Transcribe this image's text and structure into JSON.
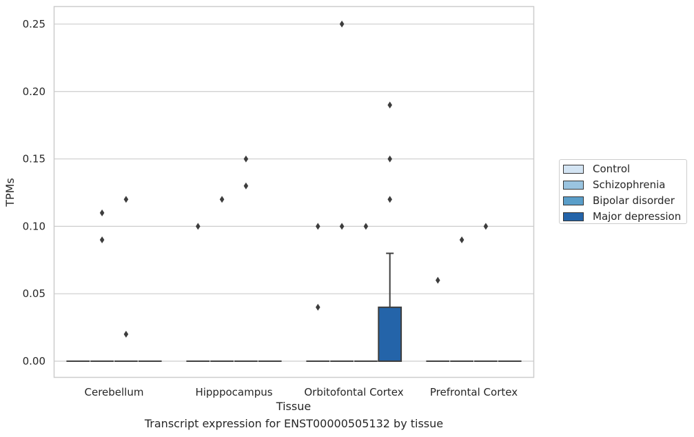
{
  "chart_data": {
    "type": "box",
    "xlabel": "Tissue",
    "ylabel": "TPMs",
    "caption": "Transcript expression for ENST00000505132 by tissue",
    "categories": [
      "Cerebellum",
      "Hipppocampus",
      "Orbitofontal Cortex",
      "Prefrontal Cortex"
    ],
    "yticks": [
      "0.00",
      "0.05",
      "0.10",
      "0.15",
      "0.20",
      "0.25"
    ],
    "ylim": [
      -0.012,
      0.263
    ],
    "grid": true,
    "legend_position": "right",
    "series": [
      {
        "name": "Control",
        "color": "#d3e4f3",
        "boxes": [
          {
            "q1": 0,
            "median": 0,
            "q3": 0,
            "whisker_low": 0,
            "whisker_high": 0,
            "outliers": []
          },
          {
            "q1": 0,
            "median": 0,
            "q3": 0,
            "whisker_low": 0,
            "whisker_high": 0,
            "outliers": [
              0.1
            ]
          },
          {
            "q1": 0,
            "median": 0,
            "q3": 0,
            "whisker_low": 0,
            "whisker_high": 0,
            "outliers": [
              0.04,
              0.1
            ]
          },
          {
            "q1": 0,
            "median": 0,
            "q3": 0,
            "whisker_low": 0,
            "whisker_high": 0,
            "outliers": [
              0.06
            ]
          }
        ]
      },
      {
        "name": "Schizophrenia",
        "color": "#9ac4e0",
        "boxes": [
          {
            "q1": 0,
            "median": 0,
            "q3": 0,
            "whisker_low": 0,
            "whisker_high": 0,
            "outliers": [
              0.09,
              0.11
            ]
          },
          {
            "q1": 0,
            "median": 0,
            "q3": 0,
            "whisker_low": 0,
            "whisker_high": 0,
            "outliers": [
              0.12
            ]
          },
          {
            "q1": 0,
            "median": 0,
            "q3": 0,
            "whisker_low": 0,
            "whisker_high": 0,
            "outliers": [
              0.1,
              0.25
            ]
          },
          {
            "q1": 0,
            "median": 0,
            "q3": 0,
            "whisker_low": 0,
            "whisker_high": 0,
            "outliers": [
              0.09
            ]
          }
        ]
      },
      {
        "name": "Bipolar disorder",
        "color": "#5a9ec9",
        "boxes": [
          {
            "q1": 0,
            "median": 0,
            "q3": 0,
            "whisker_low": 0,
            "whisker_high": 0,
            "outliers": [
              0.02,
              0.12
            ]
          },
          {
            "q1": 0,
            "median": 0,
            "q3": 0,
            "whisker_low": 0,
            "whisker_high": 0,
            "outliers": [
              0.13,
              0.15
            ]
          },
          {
            "q1": 0,
            "median": 0,
            "q3": 0,
            "whisker_low": 0,
            "whisker_high": 0,
            "outliers": [
              0.1
            ]
          },
          {
            "q1": 0,
            "median": 0,
            "q3": 0,
            "whisker_low": 0,
            "whisker_high": 0,
            "outliers": [
              0.1
            ]
          }
        ]
      },
      {
        "name": "Major depression",
        "color": "#2464a9",
        "boxes": [
          {
            "q1": 0,
            "median": 0,
            "q3": 0,
            "whisker_low": 0,
            "whisker_high": 0,
            "outliers": []
          },
          {
            "q1": 0,
            "median": 0,
            "q3": 0,
            "whisker_low": 0,
            "whisker_high": 0,
            "outliers": []
          },
          {
            "q1": 0,
            "median": 0,
            "q3": 0.04,
            "whisker_low": 0,
            "whisker_high": 0.08,
            "outliers": [
              0.12,
              0.15,
              0.19
            ]
          },
          {
            "q1": 0,
            "median": 0,
            "q3": 0,
            "whisker_low": 0,
            "whisker_high": 0,
            "outliers": []
          }
        ]
      }
    ]
  }
}
